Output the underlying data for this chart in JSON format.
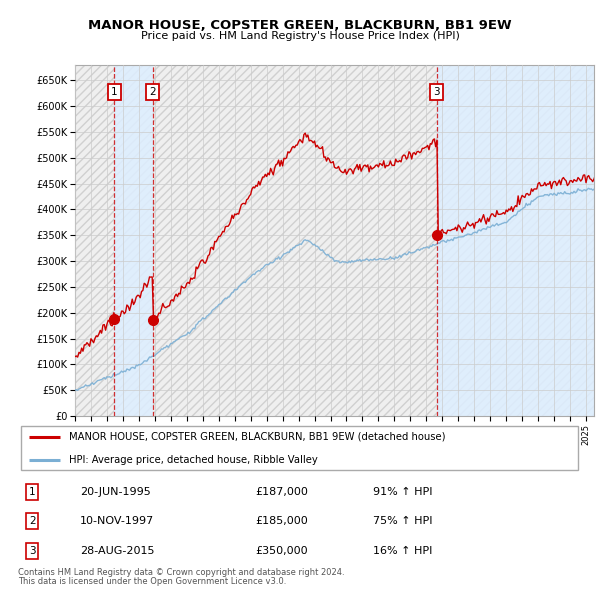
{
  "title": "MANOR HOUSE, COPSTER GREEN, BLACKBURN, BB1 9EW",
  "subtitle": "Price paid vs. HM Land Registry's House Price Index (HPI)",
  "legend_line1": "MANOR HOUSE, COPSTER GREEN, BLACKBURN, BB1 9EW (detached house)",
  "legend_line2": "HPI: Average price, detached house, Ribble Valley",
  "footer1": "Contains HM Land Registry data © Crown copyright and database right 2024.",
  "footer2": "This data is licensed under the Open Government Licence v3.0.",
  "sales": [
    {
      "label": "1",
      "date": "20-JUN-1995",
      "price": 187000,
      "pct": "91% ↑ HPI",
      "x": 1995.47
    },
    {
      "label": "2",
      "date": "10-NOV-1997",
      "price": 185000,
      "pct": "75% ↑ HPI",
      "x": 1997.86
    },
    {
      "label": "3",
      "date": "28-AUG-2015",
      "price": 350000,
      "pct": "16% ↑ HPI",
      "x": 2015.66
    }
  ],
  "hpi_color": "#7bafd4",
  "price_paid_color": "#cc0000",
  "sale_marker_color": "#cc0000",
  "shade_color": "#ddeeff",
  "grid_color": "#cccccc",
  "bg_color": "#ffffff",
  "hatch_color": "#e8e8e8",
  "ylim": [
    0,
    680000
  ],
  "yticks": [
    0,
    50000,
    100000,
    150000,
    200000,
    250000,
    300000,
    350000,
    400000,
    450000,
    500000,
    550000,
    600000,
    650000
  ],
  "xlim": [
    1993.0,
    2025.5
  ]
}
